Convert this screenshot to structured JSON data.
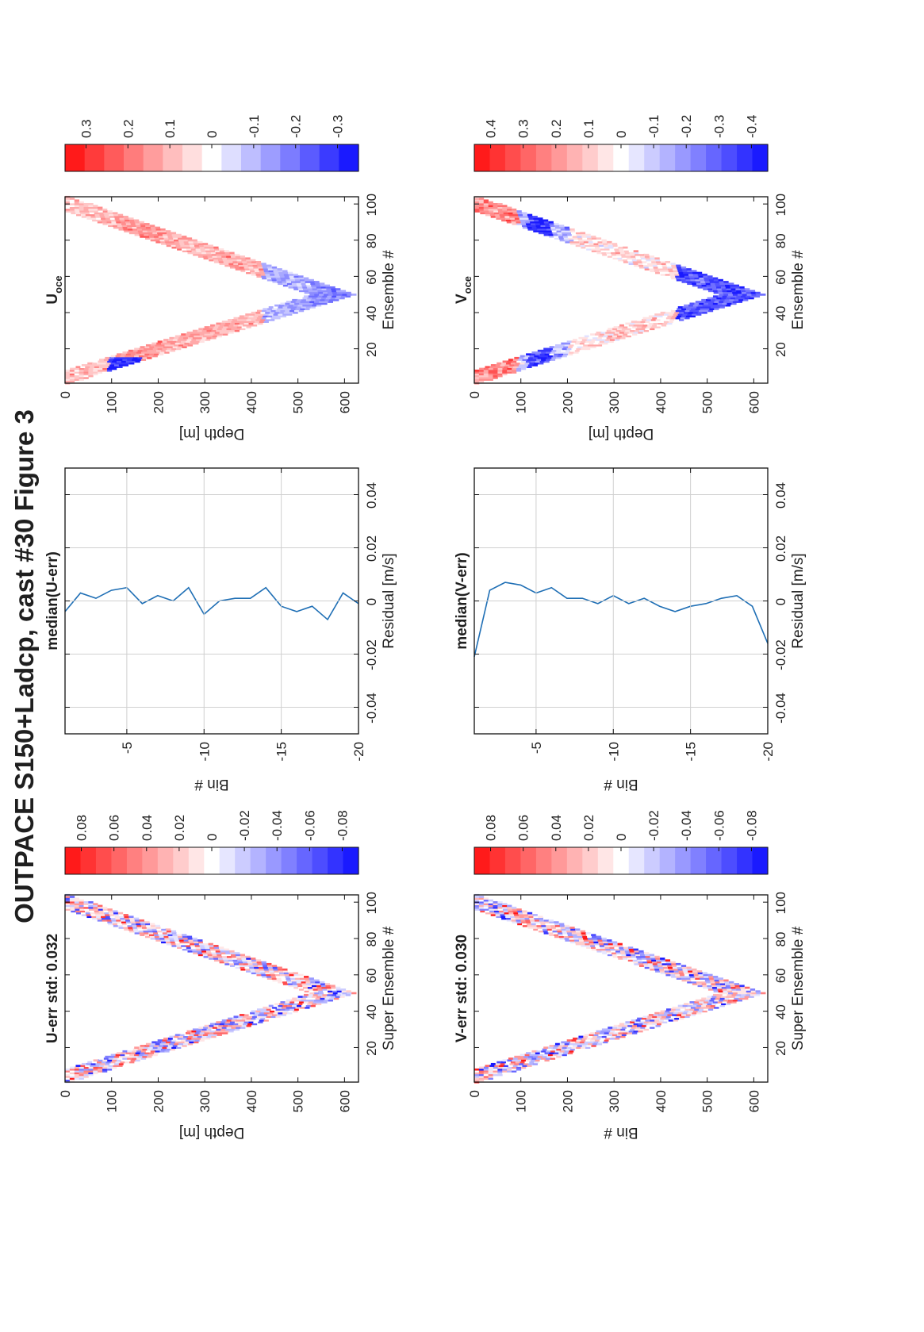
{
  "figure": {
    "title": "OUTPACE S150+Ladcp, cast #30  Figure 3",
    "layout": "rotated 90 degrees counter-clockwise; 2 rows x 3 panels",
    "colors": {
      "neg": "#1a1aff",
      "pos": "#ff1a1a",
      "line": "#1f6fb5",
      "grid": "#d0d0d0"
    }
  },
  "chart_data": [
    {
      "id": "u_err",
      "type": "heatmap",
      "title": "U-err std: 0.032",
      "xlabel": "Super Ensemble #",
      "ylabel": "Depth [m]",
      "xlim": [
        1,
        104
      ],
      "ylim": [
        0,
        630
      ],
      "x_ticks": [
        "20",
        "40",
        "60",
        "80",
        "100"
      ],
      "y_ticks": [
        "0",
        "100",
        "200",
        "300",
        "400",
        "500",
        "600"
      ],
      "pattern": "V-shaped band of residuals following descent and ascent of the cast, max depth ~620 m near ensemble 50",
      "colorbar": {
        "range": [
          -0.09,
          0.09
        ],
        "ticks": [
          "0.08",
          "0.06",
          "0.04",
          "0.02",
          "0",
          "-0.02",
          "-0.04",
          "-0.06",
          "-0.08"
        ]
      }
    },
    {
      "id": "u_med",
      "type": "line",
      "title": "median(U-err)",
      "xlabel": "Residual [m/s]",
      "ylabel": "Bin #",
      "xlim": [
        -0.05,
        0.05
      ],
      "ylim": [
        -20,
        -1
      ],
      "x_ticks": [
        "-0.04",
        "-0.02",
        "0",
        "0.02",
        "0.04"
      ],
      "y_ticks": [
        "-5",
        "-10",
        "-15",
        "-20"
      ],
      "series": [
        {
          "bins": [
            -1,
            -2,
            -3,
            -4,
            -5,
            -6,
            -7,
            -8,
            -9,
            -10,
            -11,
            -12,
            -13,
            -14,
            -15,
            -16,
            -17,
            -18,
            -19,
            -20
          ],
          "residual": [
            -0.004,
            0.003,
            0.001,
            0.004,
            0.005,
            -0.001,
            0.002,
            0.0,
            0.005,
            -0.005,
            0.0,
            0.001,
            0.001,
            0.005,
            -0.002,
            -0.004,
            -0.002,
            -0.007,
            0.003,
            -0.001
          ]
        }
      ]
    },
    {
      "id": "u_oce",
      "type": "heatmap",
      "title": "U",
      "title_sub": "oce",
      "xlabel": "Ensemble #",
      "ylabel": "Depth [m]",
      "xlim": [
        1,
        104
      ],
      "ylim": [
        0,
        630
      ],
      "x_ticks": [
        "20",
        "40",
        "60",
        "80",
        "100"
      ],
      "y_ticks": [
        "0",
        "100",
        "200",
        "300",
        "400",
        "500",
        "600"
      ],
      "pattern": "V-shaped band; red (positive) in the upper 100-400 m, blue (negative) near 120-150 m at both ends and below 450 m",
      "colorbar": {
        "range": [
          -0.35,
          0.35
        ],
        "ticks": [
          "0.3",
          "0.2",
          "0.1",
          "0",
          "-0.1",
          "-0.2",
          "-0.3"
        ]
      }
    },
    {
      "id": "v_err",
      "type": "heatmap",
      "title": "V-err std: 0.030",
      "xlabel": "Super Ensemble #",
      "ylabel": "Bin #",
      "xlim": [
        1,
        104
      ],
      "ylim": [
        0,
        630
      ],
      "x_ticks": [
        "20",
        "40",
        "60",
        "80",
        "100"
      ],
      "y_ticks": [
        "0",
        "100",
        "200",
        "300",
        "400",
        "500",
        "600"
      ],
      "pattern": "V-shaped band of mixed-sign residuals",
      "colorbar": {
        "range": [
          -0.09,
          0.09
        ],
        "ticks": [
          "0.08",
          "0.06",
          "0.04",
          "0.02",
          "0",
          "-0.02",
          "-0.04",
          "-0.06",
          "-0.08"
        ]
      }
    },
    {
      "id": "v_med",
      "type": "line",
      "title": "median(V-err)",
      "xlabel": "Residual [m/s]",
      "ylabel": "Bin #",
      "xlim": [
        -0.05,
        0.05
      ],
      "ylim": [
        -20,
        -1
      ],
      "x_ticks": [
        "-0.04",
        "-0.02",
        "0",
        "0.02",
        "0.04"
      ],
      "y_ticks": [
        "-5",
        "-10",
        "-15",
        "-20"
      ],
      "series": [
        {
          "bins": [
            -1,
            -2,
            -3,
            -4,
            -5,
            -6,
            -7,
            -8,
            -9,
            -10,
            -11,
            -12,
            -13,
            -14,
            -15,
            -16,
            -17,
            -18,
            -19,
            -20
          ],
          "residual": [
            -0.021,
            0.004,
            0.007,
            0.006,
            0.003,
            0.005,
            0.001,
            0.001,
            -0.001,
            0.002,
            -0.001,
            0.001,
            -0.002,
            -0.004,
            -0.002,
            -0.001,
            0.001,
            0.002,
            -0.002,
            -0.016
          ]
        }
      ]
    },
    {
      "id": "v_oce",
      "type": "heatmap",
      "title": "V",
      "title_sub": "oce",
      "xlabel": "Ensemble #",
      "ylabel": "Depth [m]",
      "xlim": [
        1,
        104
      ],
      "ylim": [
        0,
        630
      ],
      "x_ticks": [
        "20",
        "40",
        "60",
        "80",
        "100"
      ],
      "y_ticks": [
        "0",
        "100",
        "200",
        "300",
        "400",
        "500",
        "600"
      ],
      "pattern": "V-shaped band; strong red near surface, blue patches near 120-150 m, strong blue around 450-550 m",
      "colorbar": {
        "range": [
          -0.45,
          0.45
        ],
        "ticks": [
          "0.4",
          "0.3",
          "0.2",
          "0.1",
          "0",
          "-0.1",
          "-0.2",
          "-0.3",
          "-0.4"
        ]
      }
    }
  ]
}
